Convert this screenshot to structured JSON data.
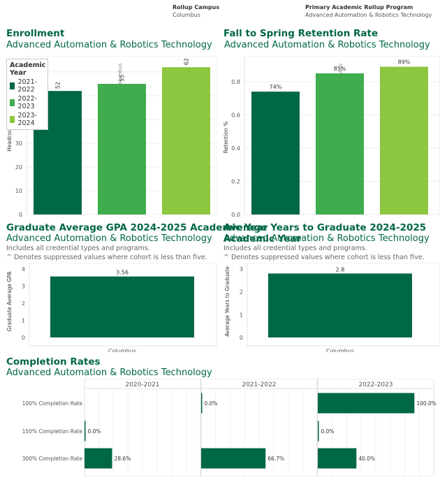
{
  "filters": {
    "campus_title": "Rollup Campus",
    "campus_value": "Columbus",
    "program_title": "Primary Academic Rollup Program",
    "program_value": "Advanced Automation & Robotics Technology"
  },
  "colors": {
    "2021-2022": "#006747",
    "2022-2023": "#3fac4d",
    "2023-2024": "#8dc63f",
    "dark_green": "#006747"
  },
  "enrollment": {
    "title": "Enrollment",
    "subtitle": "Advanced Automation & Robotics Technology",
    "legend_title": "Academic Year",
    "legend_items": [
      "2021-2022",
      "2022-2023",
      "2023-2024"
    ],
    "column_header": "Columbus",
    "chart_data": {
      "type": "bar",
      "categories": [
        "2021-2022",
        "2022-2023",
        "2023-2024"
      ],
      "values": [
        52,
        55,
        62
      ],
      "ylabel": "Headcount",
      "ylim": [
        0,
        65
      ],
      "yticks": [
        0,
        10,
        20,
        30,
        40,
        50,
        60
      ],
      "grid": true
    }
  },
  "retention": {
    "title": "Fall to Spring Retention Rate",
    "subtitle": "Advanced Automation & Robotics Technology",
    "column_header": "Columbus",
    "chart_data": {
      "type": "bar",
      "categories": [
        "2021-2022",
        "2022-2023",
        "2023-2024"
      ],
      "values": [
        0.74,
        0.85,
        0.89
      ],
      "labels": [
        "74%",
        "85%",
        "89%"
      ],
      "ylabel": "Retention %",
      "ylim": [
        0,
        0.93
      ],
      "yticks": [
        "0.0",
        "0.2",
        "0.4",
        "0.6",
        "0.8"
      ],
      "grid": true
    }
  },
  "gpa": {
    "title": "Graduate Average GPA 2024-2025 Academic Year",
    "subtitle": "Advanced Automation & Robotics Technology",
    "note1": "Includes all credential types and programs.",
    "note2": "^ Denotes suppressed values where cohort is less than five.",
    "chart_data": {
      "type": "bar",
      "categories": [
        "Columbus"
      ],
      "values": [
        3.56
      ],
      "labels": [
        "3.56"
      ],
      "ylabel": "Graduate Average GPA",
      "ylim": [
        0,
        4.2
      ],
      "yticks": [
        "0",
        "1",
        "2",
        "3",
        "4"
      ]
    }
  },
  "years": {
    "title": "Average Years to Graduate 2024-2025 Academic Year",
    "subtitle": "Advanced Automation & Robotics Technology",
    "note1": "Includes all credential types and programs.",
    "note2": "^ Denotes suppressed values where cohort is less than five.",
    "chart_data": {
      "type": "bar",
      "categories": [
        "Columbus"
      ],
      "values": [
        2.8
      ],
      "labels": [
        "2.8"
      ],
      "ylabel": "Average Years to Graduate",
      "ylim": [
        0,
        3.15
      ],
      "yticks": [
        "0",
        "1",
        "2",
        "3"
      ]
    }
  },
  "completion": {
    "title": "Completion Rates",
    "subtitle": "Advanced Automation & Robotics Technology",
    "chart_data": {
      "type": "bar",
      "orientation": "horizontal",
      "panels": [
        "2020-2021",
        "2021-2022",
        "2022-2023"
      ],
      "rows": [
        "100% Completion Rate",
        "150% Completion Rate",
        "300% Completion Rate"
      ],
      "xlim": [
        0,
        1.2
      ],
      "series": [
        {
          "panel": "2020-2021",
          "values": [
            null,
            0.0,
            0.286
          ],
          "labels": [
            "",
            "0.0%",
            "28.6%"
          ]
        },
        {
          "panel": "2021-2022",
          "values": [
            0.0,
            null,
            0.667
          ],
          "labels": [
            "0.0%",
            "",
            "66.7%"
          ]
        },
        {
          "panel": "2022-2023",
          "values": [
            1.0,
            0.0,
            0.4
          ],
          "labels": [
            "100.0%",
            "0.0%",
            "40.0%"
          ]
        }
      ]
    }
  }
}
